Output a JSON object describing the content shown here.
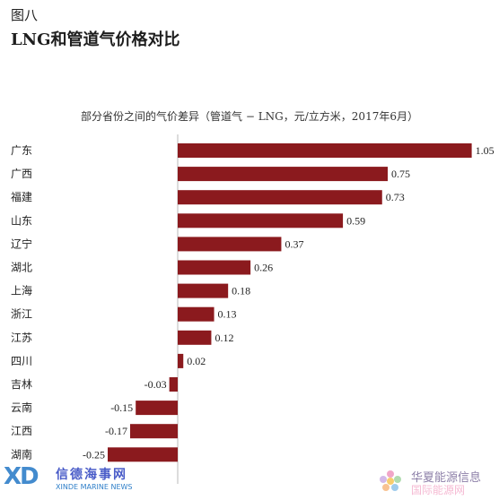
{
  "figure": {
    "label": "图八",
    "title": "LNG和管道气价格对比"
  },
  "chart_data": {
    "type": "bar",
    "orientation": "horizontal",
    "subtitle": "部分省份之间的气价差异（管道气 − LNG，元/立方米，2017年6月）",
    "categories": [
      "广东",
      "广西",
      "福建",
      "山东",
      "辽宁",
      "湖北",
      "上海",
      "浙江",
      "江苏",
      "四川",
      "吉林",
      "云南",
      "江西",
      "湖南"
    ],
    "values": [
      1.05,
      0.75,
      0.73,
      0.59,
      0.37,
      0.26,
      0.18,
      0.13,
      0.12,
      0.02,
      -0.03,
      -0.15,
      -0.17,
      -0.25
    ],
    "value_labels": [
      "1.05",
      "0.75",
      "0.73",
      "0.59",
      "0.37",
      "0.26",
      "0.18",
      "0.13",
      "0.12",
      "0.02",
      "-0.03",
      "-0.15",
      "-0.17",
      "-0.25"
    ],
    "bar_color": "#8b1a1e",
    "axis_color": "#b9b9b9",
    "grid": false,
    "legend": "none"
  },
  "watermarks": {
    "left_logo": "XD",
    "left_cn": "信德海事网",
    "left_en": "XINDE MARINE NEWS",
    "right_brand": "华夏能源信息",
    "right_sub": "国际能源网"
  }
}
